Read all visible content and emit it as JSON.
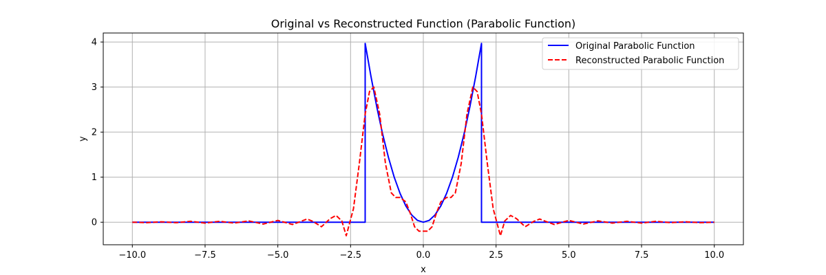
{
  "chart_data": {
    "type": "line",
    "title": "Original vs Reconstructed Function (Parabolic Function)",
    "xlabel": "x",
    "ylabel": "y",
    "xlim": [
      -11.0,
      11.0
    ],
    "ylim": [
      -0.5,
      4.2
    ],
    "xticks": [
      -10.0,
      -7.5,
      -5.0,
      -2.5,
      0.0,
      2.5,
      5.0,
      7.5,
      10.0
    ],
    "xtick_labels": [
      "−10.0",
      "−7.5",
      "−5.0",
      "−2.5",
      "0.0",
      "2.5",
      "5.0",
      "7.5",
      "10.0"
    ],
    "yticks": [
      0,
      1,
      2,
      3,
      4
    ],
    "ytick_labels": [
      "0",
      "1",
      "2",
      "3",
      "4"
    ],
    "grid": true,
    "legend_position": "top-right",
    "series": [
      {
        "name": "Original Parabolic Function",
        "color": "#0000ff",
        "style": "solid",
        "x": [
          -10.0,
          -2.0,
          -2.0,
          -1.8,
          -1.6,
          -1.4,
          -1.2,
          -1.0,
          -0.8,
          -0.6,
          -0.4,
          -0.2,
          0.0,
          0.2,
          0.4,
          0.6,
          0.8,
          1.0,
          1.2,
          1.4,
          1.6,
          1.8,
          2.0,
          2.0,
          10.0
        ],
        "y": [
          0.0,
          0.0,
          3.97,
          3.24,
          2.56,
          1.96,
          1.44,
          1.0,
          0.64,
          0.36,
          0.16,
          0.04,
          0.0,
          0.04,
          0.16,
          0.36,
          0.64,
          1.0,
          1.44,
          1.96,
          2.56,
          3.24,
          3.97,
          0.0,
          0.0
        ]
      },
      {
        "name": "Reconstructed Parabolic Function",
        "color": "#ff0000",
        "style": "dashed",
        "x": [
          -10.0,
          -9.5,
          -9.0,
          -8.5,
          -8.0,
          -7.5,
          -7.0,
          -6.5,
          -6.0,
          -5.5,
          -5.0,
          -4.5,
          -4.2,
          -4.0,
          -3.8,
          -3.5,
          -3.2,
          -3.0,
          -2.8,
          -2.65,
          -2.4,
          -2.2,
          -2.0,
          -1.85,
          -1.7,
          -1.5,
          -1.3,
          -1.1,
          -0.95,
          -0.8,
          -0.6,
          -0.45,
          -0.3,
          -0.15,
          0.0,
          0.15,
          0.3,
          0.45,
          0.6,
          0.8,
          0.95,
          1.1,
          1.3,
          1.5,
          1.7,
          1.85,
          2.0,
          2.2,
          2.4,
          2.65,
          2.8,
          3.0,
          3.2,
          3.5,
          3.8,
          4.0,
          4.2,
          4.5,
          5.0,
          5.5,
          6.0,
          6.5,
          7.0,
          7.5,
          8.0,
          8.5,
          9.0,
          9.5,
          10.0
        ],
        "y": [
          0.0,
          -0.01,
          0.01,
          -0.01,
          0.02,
          -0.02,
          0.02,
          -0.02,
          0.03,
          -0.04,
          0.04,
          -0.05,
          0.02,
          0.07,
          0.02,
          -0.1,
          0.08,
          0.15,
          0.03,
          -0.3,
          0.3,
          1.3,
          2.4,
          2.9,
          3.0,
          2.4,
          1.3,
          0.65,
          0.55,
          0.55,
          0.45,
          0.2,
          -0.1,
          -0.2,
          -0.2,
          -0.2,
          -0.1,
          0.2,
          0.45,
          0.55,
          0.55,
          0.65,
          1.3,
          2.4,
          3.0,
          2.9,
          2.4,
          1.3,
          0.3,
          -0.3,
          0.03,
          0.15,
          0.08,
          -0.1,
          0.02,
          0.07,
          0.02,
          -0.05,
          0.04,
          -0.04,
          0.03,
          -0.02,
          0.02,
          -0.02,
          0.02,
          -0.01,
          0.01,
          -0.01,
          0.0
        ]
      }
    ]
  }
}
